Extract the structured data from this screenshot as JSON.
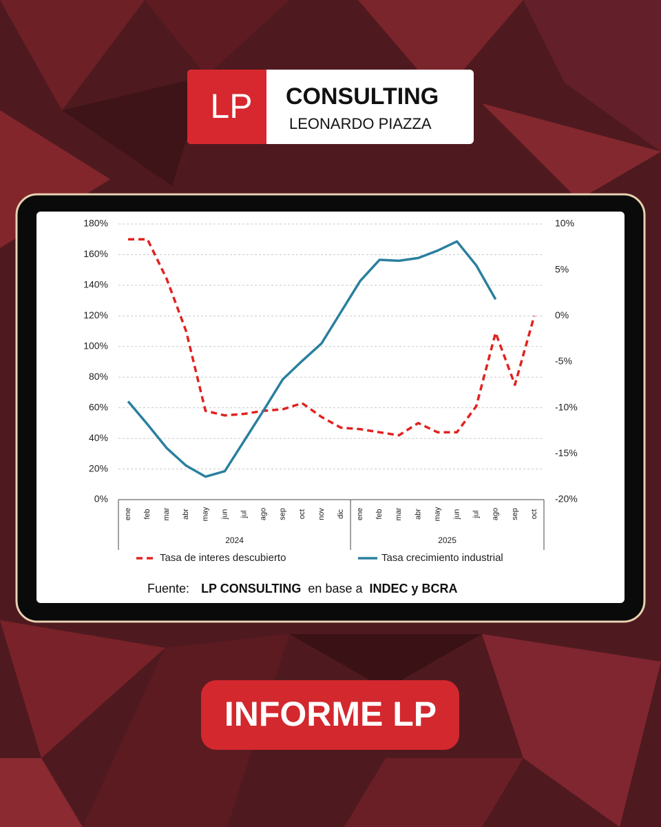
{
  "logo": {
    "mark": "LP",
    "title": "CONSULTING",
    "subtitle": "LEONARDO PIAZZA"
  },
  "chart_data": {
    "type": "line",
    "categories": [
      "ene",
      "feb",
      "mar",
      "abr",
      "may",
      "jun",
      "jul",
      "ago",
      "sep",
      "oct",
      "nov",
      "dic",
      "ene",
      "feb",
      "mar",
      "abr",
      "may",
      "jun",
      "jul",
      "ago",
      "sep",
      "oct"
    ],
    "years": [
      "2024",
      "2025"
    ],
    "ylim": [
      0,
      180
    ],
    "yticks": [
      {
        "value": 0,
        "label": "0%"
      },
      {
        "value": 20,
        "label": "20%"
      },
      {
        "value": 40,
        "label": "40%"
      },
      {
        "value": 60,
        "label": "60%"
      },
      {
        "value": 80,
        "label": "80%"
      },
      {
        "value": 100,
        "label": "100%"
      },
      {
        "value": 120,
        "label": "120%"
      },
      {
        "value": 140,
        "label": "140%"
      },
      {
        "value": 160,
        "label": "160%"
      },
      {
        "value": 180,
        "label": "180%"
      }
    ],
    "y2lim": [
      -20,
      10
    ],
    "y2ticks": [
      {
        "value": -20,
        "label": "-20%"
      },
      {
        "value": -15,
        "label": "-15%"
      },
      {
        "value": -10,
        "label": "-10%"
      },
      {
        "value": -5,
        "label": "-5%"
      },
      {
        "value": 0,
        "label": "0%"
      },
      {
        "value": 5,
        "label": "5%"
      },
      {
        "value": 10,
        "label": "10%"
      }
    ],
    "grid": true,
    "series": [
      {
        "name": "Tasa de interes descubierto",
        "color": "#e0221f",
        "style": "dashed",
        "values": [
          170,
          170,
          144,
          110,
          58,
          55,
          56,
          58,
          59,
          63,
          54,
          47,
          46,
          44,
          42,
          50,
          44,
          44,
          61,
          109,
          75,
          120
        ]
      },
      {
        "name": "Tasa crecimiento industrial",
        "color": "#2a7f9e",
        "style": "solid",
        "axis": "y2",
        "values": [
          -9.3,
          -11.8,
          -14.4,
          -16.3,
          -17.5,
          -16.9,
          -13.6,
          -10.3,
          -6.9,
          -4.9,
          -3.0,
          0.4,
          3.8,
          6.1,
          6.0,
          6.3,
          7.1,
          8.1,
          5.5,
          1.8,
          null,
          null
        ]
      }
    ]
  },
  "source": [
    "Fuente:",
    "LP CONSULTING",
    "en base a",
    "INDEC y BCRA"
  ],
  "badge": "INFORME LP"
}
